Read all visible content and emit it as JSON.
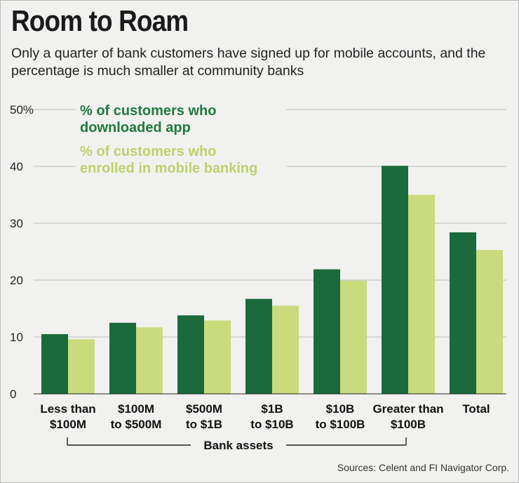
{
  "title": "Room to Roam",
  "subtitle": "Only a quarter of bank customers have signed up for mobile accounts, and the percentage is much smaller at community banks",
  "source": "Sources: Celent and FI Navigator Corp.",
  "colors": {
    "downloaded": "#1b6a3c",
    "enrolled": "#c9db7d",
    "legend_downloaded_text": "#1e7a40",
    "legend_enrolled_text": "#bcd26a"
  },
  "chart_data": {
    "type": "bar",
    "title": "Room to Roam",
    "xlabel": "Bank assets",
    "ylabel": "",
    "ylim": [
      0,
      50
    ],
    "y_ticks": [
      "50%",
      "40",
      "30",
      "20",
      "10",
      "0"
    ],
    "y_tick_values": [
      50,
      40,
      30,
      20,
      10,
      0
    ],
    "categories": [
      [
        "Less than",
        "$100M"
      ],
      [
        "$100M",
        "to $500M"
      ],
      [
        "$500M",
        "to $1B"
      ],
      [
        "$1B",
        "to $10B"
      ],
      [
        "$10B",
        "to $100B"
      ],
      [
        "Greater than",
        "$100B"
      ],
      [
        "Total",
        ""
      ]
    ],
    "series": [
      {
        "name": "% of customers who downloaded app",
        "legend_lines": [
          "% of customers who",
          "downloaded app"
        ],
        "values": [
          10.5,
          12.5,
          13.8,
          16.7,
          21.9,
          40.1,
          28.4
        ]
      },
      {
        "name": "% of customers who enrolled in mobile banking",
        "legend_lines": [
          "% of customers who",
          "enrolled in mobile banking"
        ],
        "values": [
          9.6,
          11.7,
          12.9,
          15.5,
          19.9,
          35.0,
          25.3
        ]
      }
    ],
    "grid": true,
    "legend_position": "top-left"
  }
}
